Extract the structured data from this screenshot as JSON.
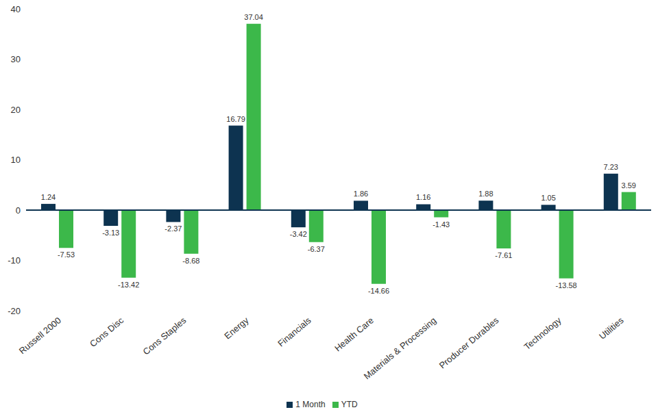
{
  "chart_data": {
    "type": "bar",
    "categories": [
      "Russell 2000",
      "Cons Disc",
      "Cons Staples",
      "Energy",
      "Financials",
      "Health Care",
      "Materials & Processing",
      "Producer Durables",
      "Technology",
      "Utilities"
    ],
    "series": [
      {
        "name": "1 Month",
        "color": "#0d3350",
        "values": [
          1.24,
          -3.13,
          -2.37,
          16.79,
          -3.42,
          1.86,
          1.16,
          1.88,
          1.05,
          7.23
        ]
      },
      {
        "name": "YTD",
        "color": "#3cb84a",
        "values": [
          -7.53,
          -13.42,
          -8.68,
          37.04,
          -6.37,
          -14.66,
          -1.43,
          -7.61,
          -13.58,
          3.59
        ]
      }
    ],
    "ylim": [
      -20,
      40
    ],
    "yticks": [
      -20,
      -10,
      0,
      10,
      20,
      30,
      40
    ],
    "grid": false,
    "data_labels": true,
    "legend": "bottom"
  }
}
